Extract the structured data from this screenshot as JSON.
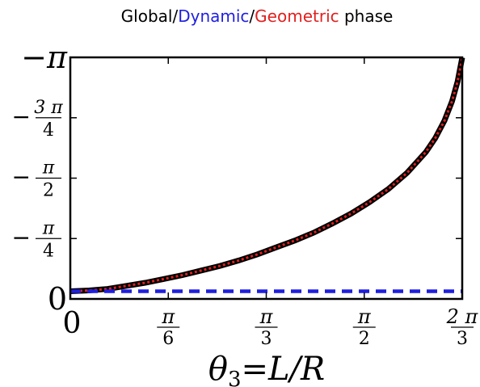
{
  "chart_data": {
    "type": "line",
    "title_parts": [
      {
        "text": "Global",
        "color": "#000000"
      },
      {
        "text": "/",
        "color": "#000000"
      },
      {
        "text": "Dynamic",
        "color": "#1f1fe0"
      },
      {
        "text": "/",
        "color": "#000000"
      },
      {
        "text": "Geometric",
        "color": "#e01f1f"
      },
      {
        "text": " phase",
        "color": "#000000"
      }
    ],
    "xlabel": {
      "theta": "θ",
      "sub": "3",
      "rest": "=L/R"
    },
    "xlim": [
      0,
      2.0944
    ],
    "ylim": [
      0,
      3.1416
    ],
    "x_ticks": [
      {
        "value": 0,
        "label": "0"
      },
      {
        "value": 0.5236,
        "num": "π",
        "den": "6"
      },
      {
        "value": 1.0472,
        "num": "π",
        "den": "3"
      },
      {
        "value": 1.5708,
        "num": "π",
        "den": "2"
      },
      {
        "value": 2.0944,
        "num": "2 π",
        "den": "3"
      }
    ],
    "y_ticks": [
      {
        "value": 0,
        "label": "0"
      },
      {
        "value": 0.7854,
        "sign": "−",
        "num": "π",
        "den": "4"
      },
      {
        "value": 1.5708,
        "sign": "−",
        "num": "π",
        "den": "2"
      },
      {
        "value": 2.3562,
        "sign": "−",
        "num": "3 π",
        "den": "4"
      },
      {
        "value": 3.1416,
        "label": "−π"
      }
    ],
    "series": [
      {
        "style": "solid",
        "color": "#000000",
        "x": [
          0,
          0.1,
          0.2,
          0.3,
          0.4,
          0.5,
          0.6,
          0.7,
          0.8,
          0.9,
          1.0,
          1.1,
          1.2,
          1.3,
          1.4,
          1.5,
          1.6,
          1.7,
          1.8,
          1.9,
          1.95,
          2.0,
          2.04,
          2.07,
          2.0944
        ],
        "y": [
          0.1,
          0.11,
          0.13,
          0.17,
          0.21,
          0.26,
          0.31,
          0.37,
          0.43,
          0.5,
          0.58,
          0.67,
          0.76,
          0.86,
          0.98,
          1.11,
          1.26,
          1.43,
          1.64,
          1.91,
          2.09,
          2.32,
          2.57,
          2.83,
          3.14
        ]
      },
      {
        "style": "dotted",
        "color": "#e01f1f",
        "x": [
          0,
          0.1,
          0.2,
          0.3,
          0.4,
          0.5,
          0.6,
          0.7,
          0.8,
          0.9,
          1.0,
          1.1,
          1.2,
          1.3,
          1.4,
          1.5,
          1.6,
          1.7,
          1.8,
          1.9,
          1.95,
          2.0,
          2.04,
          2.07,
          2.0944
        ],
        "y": [
          0.1,
          0.11,
          0.13,
          0.17,
          0.21,
          0.26,
          0.31,
          0.37,
          0.43,
          0.5,
          0.58,
          0.67,
          0.76,
          0.86,
          0.98,
          1.11,
          1.26,
          1.43,
          1.64,
          1.91,
          2.09,
          2.32,
          2.57,
          2.83,
          3.14
        ]
      },
      {
        "style": "dashed",
        "color": "#1f1fe0",
        "x": [
          0,
          2.0944
        ],
        "y": [
          0.1,
          0.1
        ]
      }
    ]
  }
}
